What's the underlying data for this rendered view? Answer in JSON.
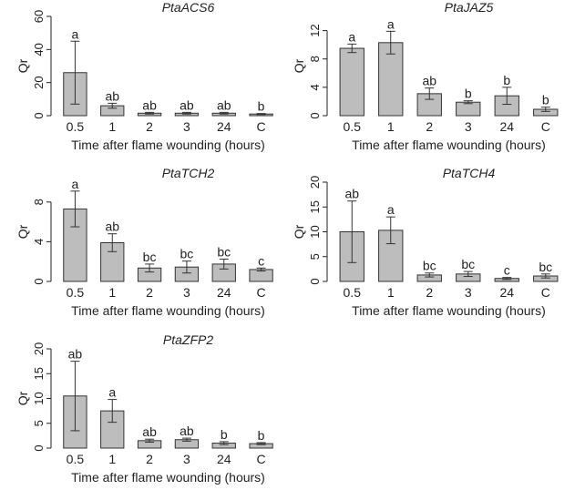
{
  "figure": {
    "ylabel": "Qr",
    "xlabel": "Time after flame wounding (hours)",
    "categories": [
      "0.5",
      "1",
      "2",
      "3",
      "24",
      "C"
    ],
    "bar_color": "#bdbdbd"
  },
  "chart_data": [
    {
      "type": "bar",
      "title": "PtaACS6",
      "xlabel": "Time after flame wounding (hours)",
      "ylabel": "Qr",
      "categories": [
        "0.5",
        "1",
        "2",
        "3",
        "24",
        "C"
      ],
      "values": [
        26,
        6,
        1.5,
        1.5,
        1.5,
        1
      ],
      "errors": [
        19,
        1.5,
        0.5,
        0.5,
        0.5,
        0.3
      ],
      "letters": [
        "a",
        "ab",
        "ab",
        "ab",
        "ab",
        "b"
      ],
      "ylim": [
        0,
        60
      ],
      "yticks": [
        0,
        20,
        40,
        60
      ]
    },
    {
      "type": "bar",
      "title": "PtaJAZ5",
      "xlabel": "Time after flame wounding (hours)",
      "ylabel": "Qr",
      "categories": [
        "0.5",
        "1",
        "2",
        "3",
        "24",
        "C"
      ],
      "values": [
        9.5,
        10.3,
        3.1,
        1.9,
        2.8,
        0.9
      ],
      "errors": [
        0.6,
        1.6,
        0.8,
        0.2,
        1.2,
        0.3
      ],
      "letters": [
        "a",
        "a",
        "ab",
        "b",
        "b",
        "b"
      ],
      "ylim": [
        0,
        14
      ],
      "yticks": [
        0,
        4,
        8,
        12
      ]
    },
    {
      "type": "bar",
      "title": "PtaTCH2",
      "xlabel": "Time after flame wounding (hours)",
      "ylabel": "Qr",
      "categories": [
        "0.5",
        "1",
        "2",
        "3",
        "24",
        "C"
      ],
      "values": [
        7.3,
        3.9,
        1.35,
        1.45,
        1.75,
        1.2
      ],
      "errors": [
        1.8,
        0.9,
        0.4,
        0.6,
        0.5,
        0.15
      ],
      "letters": [
        "a",
        "ab",
        "bc",
        "bc",
        "bc",
        "c"
      ],
      "ylim": [
        0,
        10
      ],
      "yticks": [
        0,
        4,
        8
      ]
    },
    {
      "type": "bar",
      "title": "PtaTCH4",
      "xlabel": "Time after flame wounding (hours)",
      "ylabel": "Qr",
      "categories": [
        "0.5",
        "1",
        "2",
        "3",
        "24",
        "C"
      ],
      "values": [
        10,
        10.3,
        1.3,
        1.5,
        0.6,
        1.1
      ],
      "errors": [
        6.2,
        2.7,
        0.4,
        0.5,
        0.2,
        0.4
      ],
      "letters": [
        "ab",
        "a",
        "bc",
        "bc",
        "c",
        "bc"
      ],
      "ylim": [
        0,
        20
      ],
      "yticks": [
        0,
        5,
        10,
        15,
        20
      ]
    },
    {
      "type": "bar",
      "title": "PtaZFP2",
      "xlabel": "Time after flame wounding (hours)",
      "ylabel": "Qr",
      "categories": [
        "0.5",
        "1",
        "2",
        "3",
        "24",
        "C"
      ],
      "values": [
        10.5,
        7.5,
        1.5,
        1.7,
        1.0,
        0.9
      ],
      "errors": [
        7.0,
        2.3,
        0.3,
        0.3,
        0.3,
        0.2
      ],
      "letters": [
        "ab",
        "a",
        "ab",
        "ab",
        "b",
        "b"
      ],
      "ylim": [
        0,
        20
      ],
      "yticks": [
        0,
        5,
        10,
        15,
        20
      ]
    }
  ]
}
